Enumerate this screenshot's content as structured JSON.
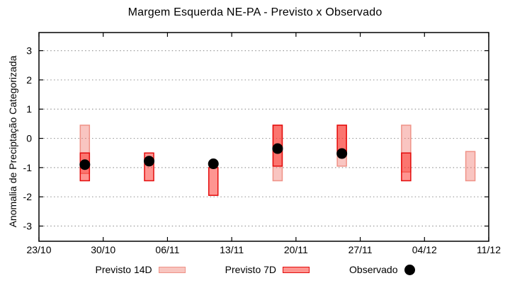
{
  "title": "Margem Esquerda NE-PA - Previsto x Observado",
  "legend": {
    "previsto14_label": "Previsto 14D",
    "previsto7_label": "Previsto 7D",
    "observado_label": "Observado"
  },
  "colors": {
    "previsto14_fill": "rgba(240,110,100,0.40)",
    "previsto14_border": "#ef9287",
    "previsto7_fill": "rgba(253,20,10,0.45)",
    "previsto7_border": "#e40c0c",
    "observado": "#000000",
    "grid": "#9a9a9a",
    "axis": "#000000"
  },
  "chart_data": {
    "type": "bar",
    "subtype": "range-bars-with-observed-points",
    "title": "Margem Esquerda NE-PA - Previsto x Observado",
    "xlabel": "",
    "ylabel": "Anomalia de Preciptação Categorizada",
    "x_tick_labels": [
      "23/10",
      "30/10",
      "06/11",
      "13/11",
      "20/11",
      "27/11",
      "04/12",
      "11/12"
    ],
    "x_tick_days": [
      0,
      7,
      14,
      21,
      28,
      35,
      42,
      49
    ],
    "xlim_days": [
      0,
      49
    ],
    "y_ticks": [
      3,
      2,
      1,
      0,
      -1,
      -2,
      -3
    ],
    "ylim": [
      -3.52,
      3.62
    ],
    "grid": "horizontal-dotted",
    "legend_position": "bottom-outside",
    "bar_width_days": 1.0,
    "series": [
      {
        "name": "Previsto 14D",
        "type": "range-bar",
        "points": [
          {
            "date": "28/10",
            "day": 5,
            "low": -1.2,
            "high": 0.45
          },
          {
            "date": "18/11",
            "day": 26,
            "low": -1.45,
            "high": 0.45
          },
          {
            "date": "25/11",
            "day": 33,
            "low": -0.95,
            "high": 0.45
          },
          {
            "date": "02/12",
            "day": 40,
            "low": -1.15,
            "high": 0.45
          },
          {
            "date": "09/12",
            "day": 47,
            "low": -1.45,
            "high": -0.45
          }
        ]
      },
      {
        "name": "Previsto 7D",
        "type": "range-bar",
        "points": [
          {
            "date": "28/10",
            "day": 5,
            "low": -1.45,
            "high": -0.5
          },
          {
            "date": "04/11",
            "day": 12,
            "low": -1.45,
            "high": -0.5
          },
          {
            "date": "11/11",
            "day": 19,
            "low": -1.95,
            "high": -1.0
          },
          {
            "date": "18/11",
            "day": 26,
            "low": -0.95,
            "high": 0.45
          },
          {
            "date": "25/11",
            "day": 33,
            "low": -0.5,
            "high": 0.45
          },
          {
            "date": "02/12",
            "day": 40,
            "low": -1.45,
            "high": -0.5
          }
        ]
      },
      {
        "name": "Observado",
        "type": "scatter",
        "points": [
          {
            "date": "28/10",
            "day": 5,
            "value": -0.9
          },
          {
            "date": "04/11",
            "day": 12,
            "value": -0.78
          },
          {
            "date": "11/11",
            "day": 19,
            "value": -0.87
          },
          {
            "date": "18/11",
            "day": 26,
            "value": -0.35
          },
          {
            "date": "25/11",
            "day": 33,
            "value": -0.52
          }
        ]
      }
    ]
  }
}
